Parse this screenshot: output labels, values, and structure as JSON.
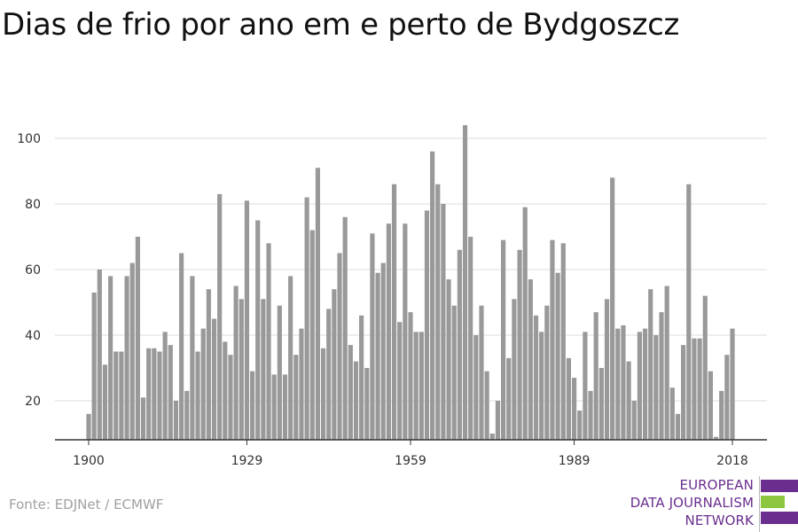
{
  "title": "Dias de frio por ano em e perto de Bydgoszcz",
  "source": "Fonte: EDJNet / ECMWF",
  "logo": {
    "line1": "EUROPEAN",
    "line2": "DATA JOURNALISM",
    "line3": "NETWORK",
    "colors": {
      "purple": "#6a2f8e",
      "green": "#8dc63f"
    }
  },
  "colors": {
    "bar": "#999999",
    "grid": "#dddddd",
    "axis": "#333333",
    "tick_text": "#333333"
  },
  "chart_data": {
    "type": "bar",
    "title": "Dias de frio por ano em e perto de Bydgoszcz",
    "xlabel": "",
    "ylabel": "",
    "x_ticks": [
      1900,
      1929,
      1959,
      1989,
      2018
    ],
    "y_ticks": [
      20,
      40,
      60,
      80,
      100
    ],
    "xlim": [
      1900,
      2018
    ],
    "ylim": [
      8,
      108
    ],
    "grid": true,
    "x": [
      1900,
      1901,
      1902,
      1903,
      1904,
      1905,
      1906,
      1907,
      1908,
      1909,
      1910,
      1911,
      1912,
      1913,
      1914,
      1915,
      1916,
      1917,
      1918,
      1919,
      1920,
      1921,
      1922,
      1923,
      1924,
      1925,
      1926,
      1927,
      1928,
      1929,
      1930,
      1931,
      1932,
      1933,
      1934,
      1935,
      1936,
      1937,
      1938,
      1939,
      1940,
      1941,
      1942,
      1943,
      1944,
      1945,
      1946,
      1947,
      1948,
      1949,
      1950,
      1951,
      1952,
      1953,
      1954,
      1955,
      1956,
      1957,
      1958,
      1959,
      1960,
      1961,
      1962,
      1963,
      1964,
      1965,
      1966,
      1967,
      1968,
      1969,
      1970,
      1971,
      1972,
      1973,
      1974,
      1975,
      1976,
      1977,
      1978,
      1979,
      1980,
      1981,
      1982,
      1983,
      1984,
      1985,
      1986,
      1987,
      1988,
      1989,
      1990,
      1991,
      1992,
      1993,
      1994,
      1995,
      1996,
      1997,
      1998,
      1999,
      2000,
      2001,
      2002,
      2003,
      2004,
      2005,
      2006,
      2007,
      2008,
      2009,
      2010,
      2011,
      2012,
      2013,
      2014,
      2015,
      2016,
      2017,
      2018
    ],
    "values": [
      16,
      53,
      60,
      31,
      58,
      35,
      35,
      58,
      62,
      70,
      21,
      36,
      36,
      35,
      41,
      37,
      20,
      65,
      23,
      58,
      35,
      42,
      54,
      45,
      83,
      38,
      34,
      55,
      51,
      81,
      29,
      75,
      51,
      68,
      28,
      49,
      28,
      58,
      34,
      42,
      82,
      72,
      91,
      36,
      48,
      54,
      65,
      76,
      37,
      32,
      46,
      30,
      71,
      59,
      62,
      74,
      86,
      44,
      74,
      47,
      41,
      41,
      78,
      96,
      86,
      80,
      57,
      49,
      66,
      104,
      70,
      40,
      49,
      29,
      10,
      20,
      69,
      33,
      51,
      66,
      79,
      57,
      46,
      41,
      49,
      69,
      59,
      68,
      33,
      27,
      17,
      41,
      23,
      47,
      30,
      51,
      88,
      42,
      43,
      32,
      20,
      41,
      42,
      54,
      40,
      47,
      55,
      24,
      16,
      37,
      86,
      39,
      39,
      52,
      29,
      9,
      23,
      34,
      42
    ]
  }
}
